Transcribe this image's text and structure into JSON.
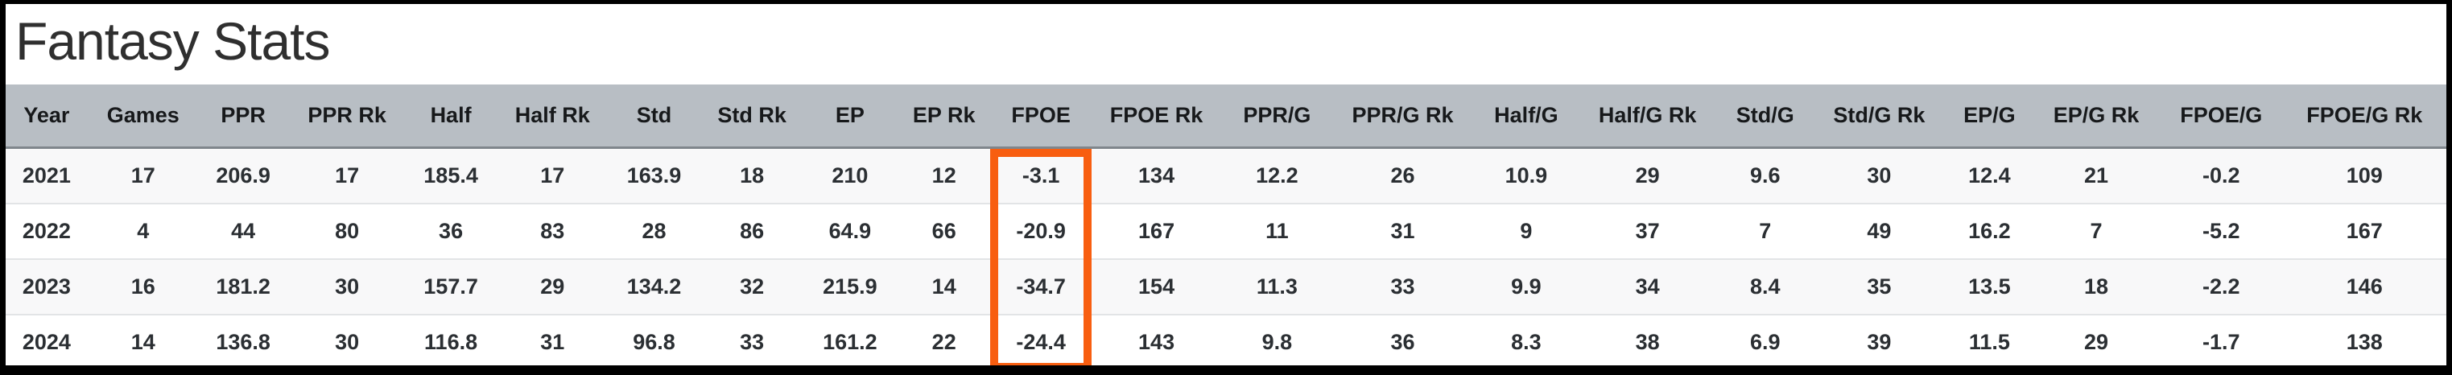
{
  "page": {
    "title": "Fantasy Stats"
  },
  "colors": {
    "header_background": "#b8bec4",
    "header_border": "#7f868c",
    "row_stripe": "#f8f8f9",
    "row_separator": "#e2e4e6",
    "highlight_orange": "#f85e10",
    "frame_black": "#000000"
  },
  "table": {
    "highlighted_column": "FPOE",
    "columns": [
      "Year",
      "Games",
      "PPR",
      "PPR Rk",
      "Half",
      "Half Rk",
      "Std",
      "Std Rk",
      "EP",
      "EP Rk",
      "FPOE",
      "FPOE Rk",
      "PPR/G",
      "PPR/G Rk",
      "Half/G",
      "Half/G Rk",
      "Std/G",
      "Std/G Rk",
      "EP/G",
      "EP/G Rk",
      "FPOE/G",
      "FPOE/G Rk"
    ],
    "rows": [
      [
        "2021",
        "17",
        "206.9",
        "17",
        "185.4",
        "17",
        "163.9",
        "18",
        "210",
        "12",
        "-3.1",
        "134",
        "12.2",
        "26",
        "10.9",
        "29",
        "9.6",
        "30",
        "12.4",
        "21",
        "-0.2",
        "109"
      ],
      [
        "2022",
        "4",
        "44",
        "80",
        "36",
        "83",
        "28",
        "86",
        "64.9",
        "66",
        "-20.9",
        "167",
        "11",
        "31",
        "9",
        "37",
        "7",
        "49",
        "16.2",
        "7",
        "-5.2",
        "167"
      ],
      [
        "2023",
        "16",
        "181.2",
        "30",
        "157.7",
        "29",
        "134.2",
        "32",
        "215.9",
        "14",
        "-34.7",
        "154",
        "11.3",
        "33",
        "9.9",
        "34",
        "8.4",
        "35",
        "13.5",
        "18",
        "-2.2",
        "146"
      ],
      [
        "2024",
        "14",
        "136.8",
        "30",
        "116.8",
        "31",
        "96.8",
        "33",
        "161.2",
        "22",
        "-24.4",
        "143",
        "9.8",
        "36",
        "8.3",
        "38",
        "6.9",
        "39",
        "11.5",
        "29",
        "-1.7",
        "138"
      ]
    ]
  }
}
